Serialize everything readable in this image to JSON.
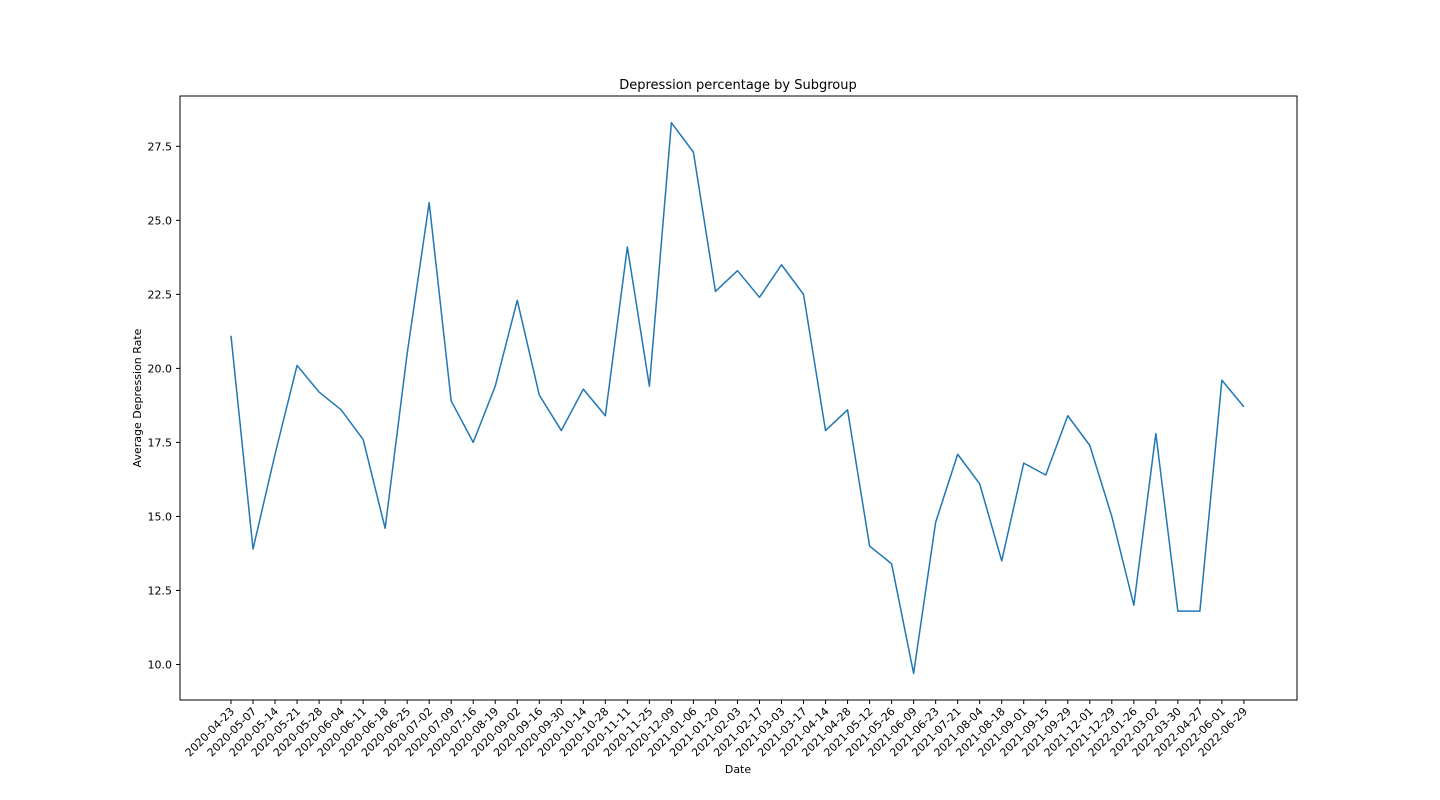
{
  "chart_data": {
    "type": "line",
    "title": "Depression percentage by Subgroup",
    "xlabel": "Date",
    "ylabel": "Average Depression Rate",
    "categories": [
      "2020-04-23",
      "2020-05-07",
      "2020-05-14",
      "2020-05-21",
      "2020-05-28",
      "2020-06-04",
      "2020-06-11",
      "2020-06-18",
      "2020-06-25",
      "2020-07-02",
      "2020-07-09",
      "2020-07-16",
      "2020-08-19",
      "2020-09-02",
      "2020-09-16",
      "2020-09-30",
      "2020-10-14",
      "2020-10-28",
      "2020-11-11",
      "2020-11-25",
      "2020-12-09",
      "2021-01-06",
      "2021-01-20",
      "2021-02-03",
      "2021-02-17",
      "2021-03-03",
      "2021-03-17",
      "2021-04-14",
      "2021-04-28",
      "2021-05-12",
      "2021-05-26",
      "2021-06-09",
      "2021-06-23",
      "2021-07-21",
      "2021-08-04",
      "2021-08-18",
      "2021-09-01",
      "2021-09-15",
      "2021-09-29",
      "2021-12-01",
      "2021-12-29",
      "2022-01-26",
      "2022-03-02",
      "2022-03-30",
      "2022-04-27",
      "2022-06-01",
      "2022-06-29"
    ],
    "series": [
      {
        "color": "#1f77b4",
        "values": [
          21.1,
          13.9,
          17.1,
          20.1,
          19.2,
          18.6,
          17.6,
          14.6,
          20.5,
          25.6,
          18.9,
          17.5,
          19.4,
          22.3,
          19.1,
          17.9,
          19.3,
          18.4,
          24.1,
          19.4,
          28.3,
          27.3,
          22.6,
          23.3,
          22.4,
          23.5,
          22.5,
          17.9,
          18.6,
          14.0,
          13.4,
          9.7,
          14.8,
          17.1,
          16.1,
          13.5,
          16.8,
          16.4,
          18.4,
          17.4,
          15.0,
          12.0,
          17.8,
          11.8,
          11.8,
          19.6,
          18.7
        ]
      }
    ],
    "yticks": [
      "10.0",
      "12.5",
      "15.0",
      "17.5",
      "20.0",
      "22.5",
      "25.0",
      "27.5"
    ],
    "ylim": [
      8.8,
      29.2
    ],
    "grid": false,
    "legend": "none"
  }
}
